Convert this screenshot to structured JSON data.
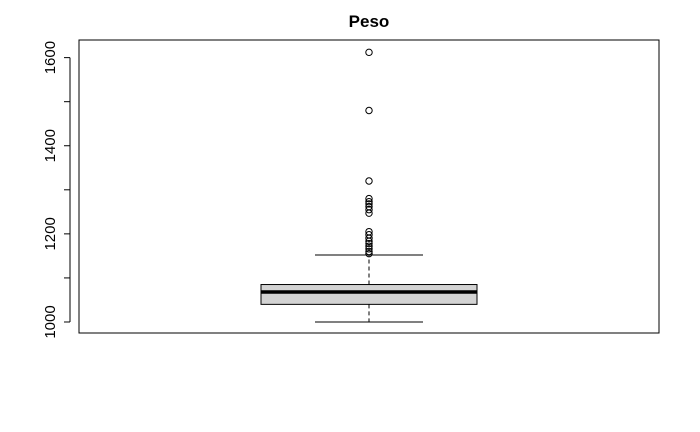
{
  "chart_data": {
    "type": "boxplot",
    "title": "Peso",
    "xlabel": "",
    "ylabel": "",
    "ylim": [
      975,
      1640
    ],
    "yticks": [
      1000,
      1200,
      1400,
      1600
    ],
    "ytick_labels": [
      "1000",
      "1200",
      "1400",
      "1600"
    ],
    "box": {
      "whisker_low": 1000,
      "q1": 1040,
      "median": 1068,
      "q3": 1085,
      "whisker_high": 1152
    },
    "outliers": [
      1612,
      1480,
      1320,
      1280,
      1273,
      1268,
      1262,
      1255,
      1247,
      1205,
      1198,
      1190,
      1183,
      1178,
      1172,
      1166,
      1160,
      1155
    ],
    "colors": {
      "box_fill": "#d3d3d3",
      "stroke": "#000000"
    }
  }
}
